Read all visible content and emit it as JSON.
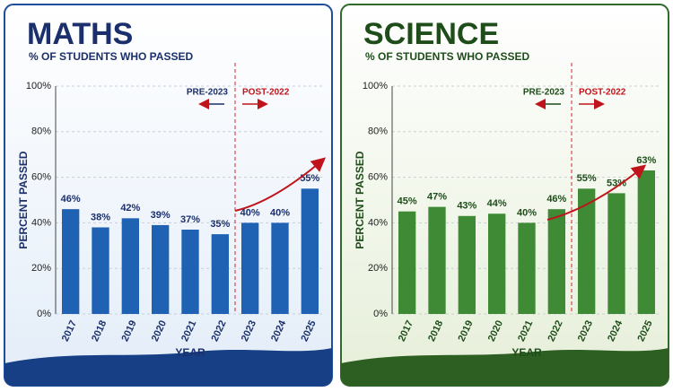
{
  "chart_data": [
    {
      "type": "bar",
      "title": "MATHS",
      "subtitle": "% OF STUDENTS WHO PASSED",
      "x_label": "YEAR",
      "y_label": "PERCENT PASSED",
      "categories": [
        "2017",
        "2018",
        "2019",
        "2020",
        "2021",
        "2022",
        "2023",
        "2024",
        "2025"
      ],
      "values": [
        46,
        38,
        42,
        39,
        37,
        35,
        40,
        40,
        55
      ],
      "value_labels": [
        "46%",
        "38%",
        "42%",
        "39%",
        "37%",
        "35%",
        "40%",
        "40%",
        "55%"
      ],
      "color": "#1f62b3",
      "ylim": [
        0,
        100
      ],
      "yticks": [
        {
          "value": 0,
          "label": "0%"
        },
        {
          "value": 20,
          "label": "20%"
        },
        {
          "value": 40,
          "label": "40%"
        },
        {
          "value": 60,
          "label": "60%"
        },
        {
          "value": 80,
          "label": "80%"
        },
        {
          "value": 100,
          "label": "100%"
        }
      ],
      "grid": true,
      "annotations": [
        "PRE-2023",
        "POST-2022"
      ]
    },
    {
      "type": "bar",
      "title": "SCIENCE",
      "subtitle": "% OF STUDENTS WHO PASSED",
      "x_label": "YEAR",
      "y_label": "PERCENT PASSED",
      "categories": [
        "2017",
        "2018",
        "2019",
        "2020",
        "2021",
        "2022",
        "2023",
        "2024",
        "2025"
      ],
      "values": [
        45,
        47,
        43,
        44,
        40,
        46,
        55,
        53,
        63
      ],
      "value_labels": [
        "45%",
        "47%",
        "43%",
        "44%",
        "40%",
        "46%",
        "55%",
        "53%",
        "63%"
      ],
      "color": "#3f8b35",
      "ylim": [
        0,
        100
      ],
      "yticks": [
        {
          "value": 0,
          "label": "0%"
        },
        {
          "value": 20,
          "label": "20%"
        },
        {
          "value": 40,
          "label": "40%"
        },
        {
          "value": 60,
          "label": "60%"
        },
        {
          "value": 80,
          "label": "80%"
        },
        {
          "value": 100,
          "label": "100%"
        }
      ],
      "grid": true,
      "annotations": [
        "PRE-2023",
        "POST-2022"
      ]
    }
  ]
}
